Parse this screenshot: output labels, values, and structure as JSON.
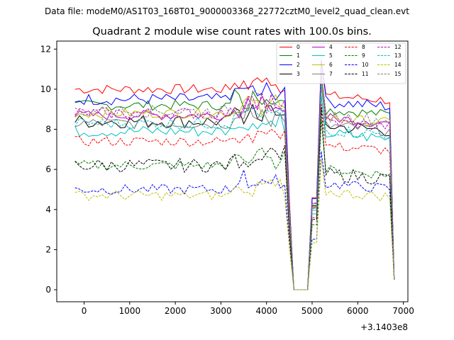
{
  "chart_data": {
    "type": "line",
    "suptitle": "Data file: modeM0/AS1T03_168T01_9000003368_22772cztM0_level2_quad_clean.evt",
    "title": "Quadrant 2 module wise count rates with 100.0s bins.",
    "xlabel": "",
    "ylabel": "",
    "x_offset_label": "+3.1403e8",
    "xlim": [
      -600,
      7100
    ],
    "ylim": [
      -0.6,
      12.4
    ],
    "xticks": [
      0,
      1000,
      2000,
      3000,
      4000,
      5000,
      6000,
      7000
    ],
    "yticks": [
      0,
      2,
      4,
      6,
      8,
      10,
      12
    ],
    "legend_position": "top-right",
    "series": [
      {
        "name": "0",
        "color": "#ff0000",
        "dash": "solid",
        "base": 10.0,
        "amp": 0.25,
        "jump": 10.2,
        "post": 9.7
      },
      {
        "name": "1",
        "color": "#008000",
        "dash": "solid",
        "base": 9.2,
        "amp": 0.25,
        "jump": 9.5,
        "post": 9.0
      },
      {
        "name": "2",
        "color": "#0000ff",
        "dash": "solid",
        "base": 9.5,
        "amp": 0.3,
        "jump": 10.1,
        "post": 9.4
      },
      {
        "name": "3",
        "color": "#000000",
        "dash": "solid",
        "base": 8.4,
        "amp": 0.35,
        "jump": 9.3,
        "post": 8.2
      },
      {
        "name": "4",
        "color": "#bf00bf",
        "dash": "solid",
        "base": 8.7,
        "amp": 0.25,
        "jump": 9.1,
        "post": 8.6
      },
      {
        "name": "5",
        "color": "#00bfbf",
        "dash": "solid",
        "base": 7.9,
        "amp": 0.3,
        "jump": 8.4,
        "post": 7.8
      },
      {
        "name": "6",
        "color": "#bfbf00",
        "dash": "solid",
        "base": 8.8,
        "amp": 0.25,
        "jump": 9.2,
        "post": 8.6
      },
      {
        "name": "7",
        "color": "#808080",
        "dash": "solid",
        "base": 8.3,
        "amp": 0.3,
        "jump": 8.8,
        "post": 8.2
      },
      {
        "name": "8",
        "color": "#ff0000",
        "dash": "dashed",
        "base": 7.4,
        "amp": 0.25,
        "jump": 8.0,
        "post": 7.2
      },
      {
        "name": "9",
        "color": "#008000",
        "dash": "dashed",
        "base": 6.2,
        "amp": 0.25,
        "jump": 7.2,
        "post": 6.0
      },
      {
        "name": "10",
        "color": "#0000ff",
        "dash": "dashed",
        "base": 5.0,
        "amp": 0.25,
        "jump": 5.6,
        "post": 5.3
      },
      {
        "name": "11",
        "color": "#000000",
        "dash": "dashed",
        "base": 6.2,
        "amp": 0.35,
        "jump": 7.8,
        "post": 5.8
      },
      {
        "name": "12",
        "color": "#bf00bf",
        "dash": "dashed",
        "base": 8.8,
        "amp": 0.3,
        "jump": 9.6,
        "post": 8.4
      },
      {
        "name": "13",
        "color": "#00bfbf",
        "dash": "dashed",
        "base": 8.3,
        "amp": 0.3,
        "jump": 9.0,
        "post": 8.0
      },
      {
        "name": "14",
        "color": "#bfbf00",
        "dash": "dashed",
        "base": 4.7,
        "amp": 0.25,
        "jump": 5.2,
        "post": 4.9
      },
      {
        "name": "15",
        "color": "#808080",
        "dash": "dashed",
        "base": 8.9,
        "amp": 0.3,
        "jump": 9.5,
        "post": 8.7
      }
    ],
    "time_grid": {
      "start": -200,
      "step": 100,
      "count": 71
    },
    "gap": {
      "drop_start": 4500,
      "zero_start": 4600,
      "zero_end": 4900,
      "rise_end": 5000,
      "peak": 5150,
      "end_drop": 6750,
      "end_value": 0.5
    }
  }
}
